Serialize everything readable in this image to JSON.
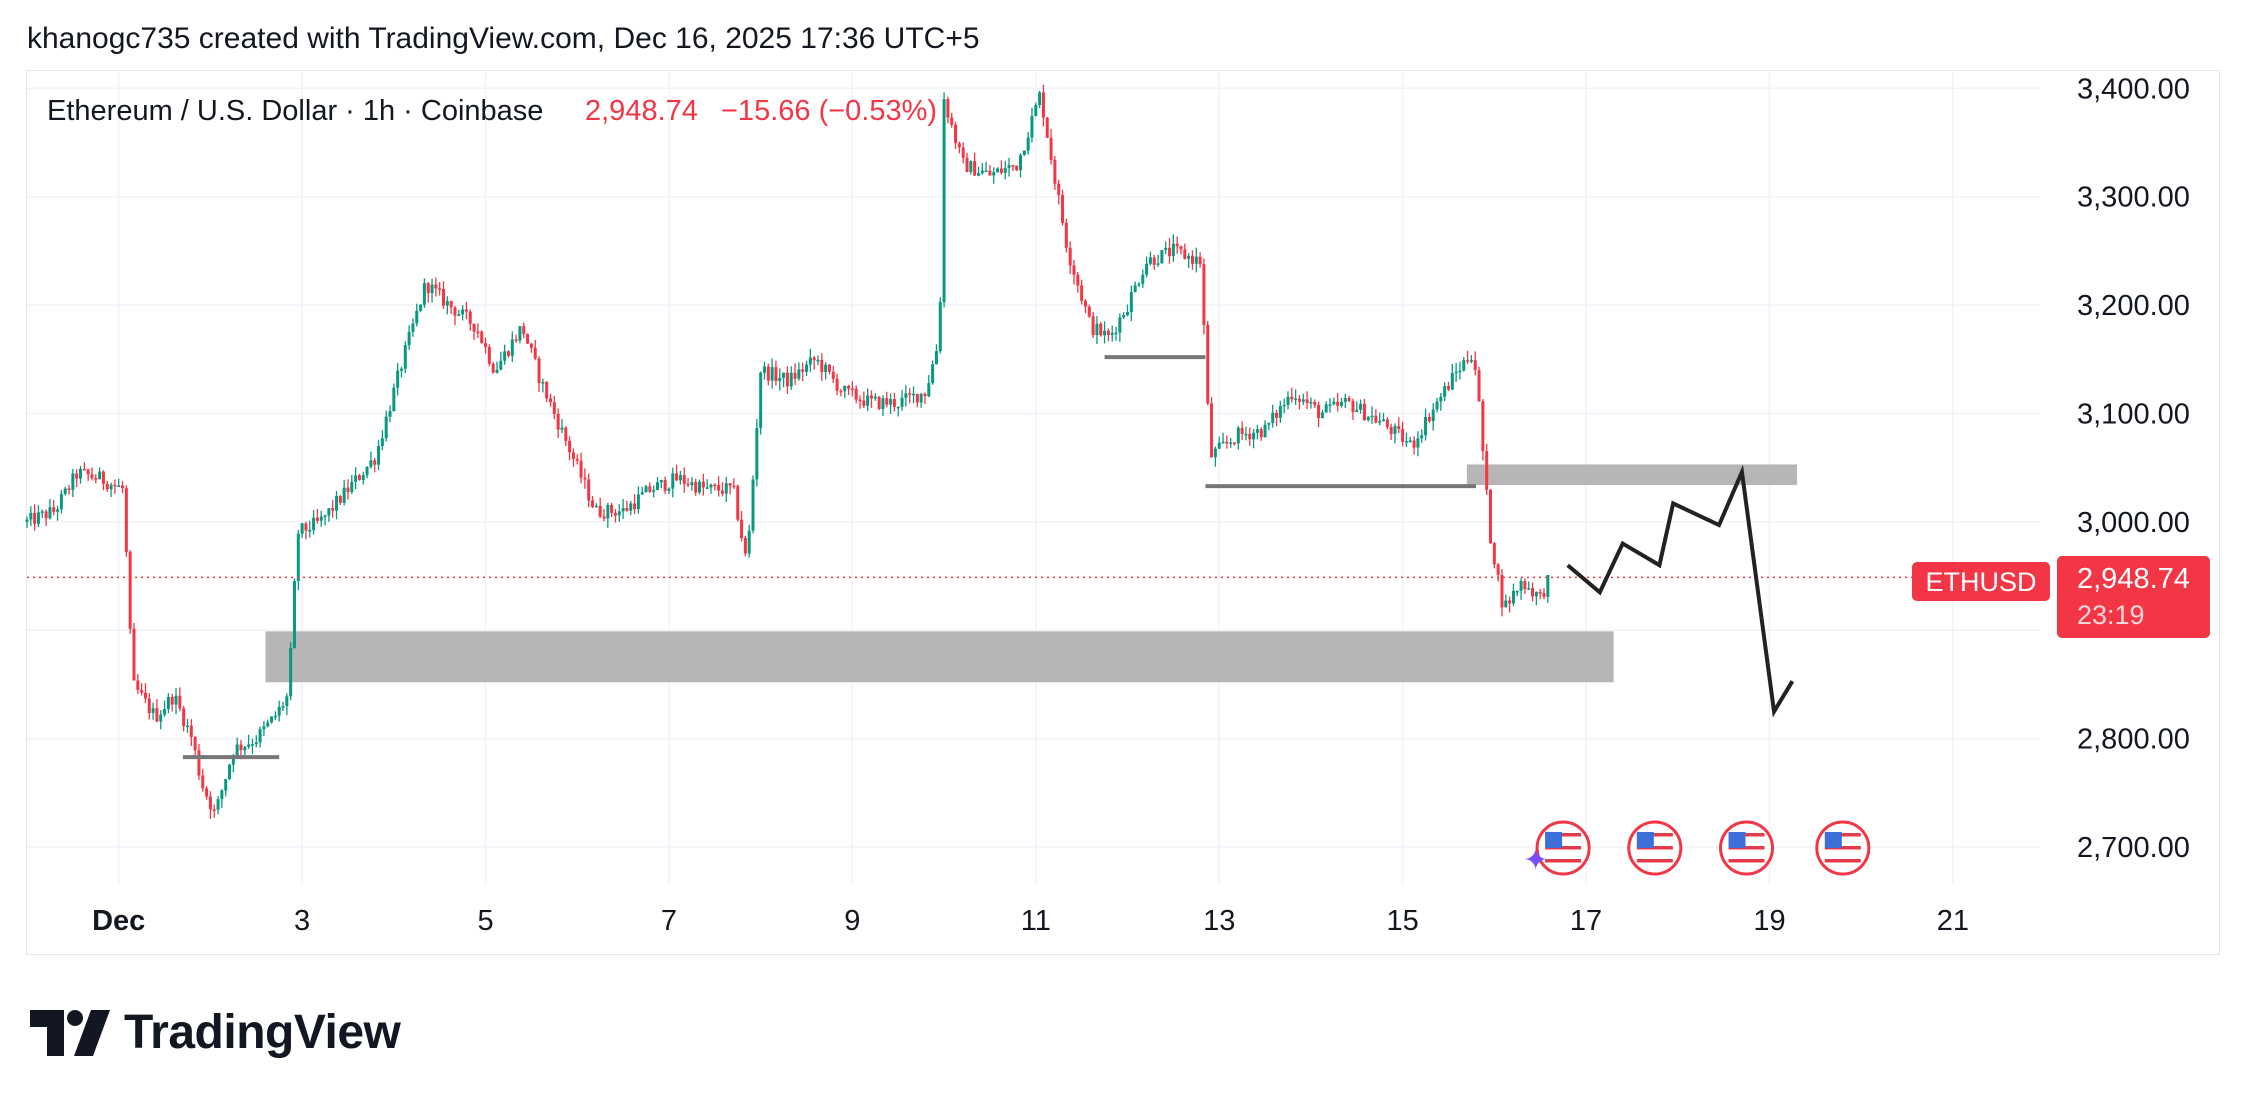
{
  "header": {
    "attribution": "khanogc735 created with TradingView.com, Dec 16, 2025 17:36 UTC+5"
  },
  "chart_data": {
    "type": "candlestick",
    "title": "Ethereum / U.S. Dollar · 1h · Coinbase",
    "last_price": "2,948.74",
    "change": "−15.66 (−0.53%)",
    "symbol_badge": "ETHUSD",
    "countdown": "23:19",
    "y_ticks": [
      "3,400.00",
      "3,300.00",
      "3,200.00",
      "3,100.00",
      "3,000.00",
      "2,800.00",
      "2,700.00"
    ],
    "y_tick_values": [
      3400,
      3300,
      3200,
      3100,
      3000,
      2800,
      2700
    ],
    "ylim": [
      2665,
      3415
    ],
    "x_ticks": [
      "Dec",
      "3",
      "5",
      "7",
      "9",
      "11",
      "13",
      "15",
      "17",
      "19",
      "21"
    ],
    "x_tick_days": [
      1,
      3,
      5,
      7,
      9,
      11,
      13,
      15,
      17,
      19,
      21
    ],
    "xlim_days": [
      0.0,
      21.95
    ],
    "price_path": [
      [
        0.0,
        3000
      ],
      [
        0.3,
        3010
      ],
      [
        0.55,
        3045
      ],
      [
        0.8,
        3040
      ],
      [
        1.05,
        3030
      ],
      [
        1.15,
        2850
      ],
      [
        1.4,
        2820
      ],
      [
        1.6,
        2840
      ],
      [
        1.8,
        2800
      ],
      [
        1.9,
        2760
      ],
      [
        2.05,
        2730
      ],
      [
        2.25,
        2790
      ],
      [
        2.5,
        2800
      ],
      [
        2.7,
        2820
      ],
      [
        2.85,
        2840
      ],
      [
        2.95,
        2990
      ],
      [
        3.2,
        3000
      ],
      [
        3.5,
        3030
      ],
      [
        3.8,
        3060
      ],
      [
        4.1,
        3150
      ],
      [
        4.35,
        3220
      ],
      [
        4.6,
        3200
      ],
      [
        4.9,
        3180
      ],
      [
        5.1,
        3140
      ],
      [
        5.4,
        3180
      ],
      [
        5.6,
        3130
      ],
      [
        5.9,
        3070
      ],
      [
        6.2,
        3010
      ],
      [
        6.5,
        3010
      ],
      [
        6.8,
        3030
      ],
      [
        7.1,
        3040
      ],
      [
        7.4,
        3030
      ],
      [
        7.7,
        3030
      ],
      [
        7.85,
        2960
      ],
      [
        8.0,
        3140
      ],
      [
        8.3,
        3130
      ],
      [
        8.6,
        3150
      ],
      [
        8.9,
        3120
      ],
      [
        9.2,
        3110
      ],
      [
        9.5,
        3110
      ],
      [
        9.8,
        3120
      ],
      [
        9.95,
        3170
      ],
      [
        10.0,
        3390
      ],
      [
        10.2,
        3330
      ],
      [
        10.5,
        3320
      ],
      [
        10.8,
        3330
      ],
      [
        11.05,
        3395
      ],
      [
        11.2,
        3320
      ],
      [
        11.35,
        3250
      ],
      [
        11.6,
        3180
      ],
      [
        11.8,
        3170
      ],
      [
        12.0,
        3200
      ],
      [
        12.2,
        3240
      ],
      [
        12.5,
        3250
      ],
      [
        12.8,
        3240
      ],
      [
        12.9,
        3060
      ],
      [
        13.2,
        3080
      ],
      [
        13.5,
        3085
      ],
      [
        13.8,
        3120
      ],
      [
        14.1,
        3100
      ],
      [
        14.4,
        3110
      ],
      [
        14.8,
        3090
      ],
      [
        15.1,
        3070
      ],
      [
        15.3,
        3100
      ],
      [
        15.6,
        3140
      ],
      [
        15.75,
        3155
      ],
      [
        15.8,
        3140
      ],
      [
        15.95,
        2990
      ],
      [
        16.1,
        2920
      ],
      [
        16.3,
        2945
      ],
      [
        16.5,
        2930
      ],
      [
        16.6,
        2948.74
      ]
    ],
    "current_price": 2948.74,
    "zones": [
      {
        "d0": 2.6,
        "d1": 17.3,
        "p_top": 2899,
        "p_bot": 2852
      },
      {
        "d0": 15.7,
        "d1": 19.3,
        "p_top": 3053,
        "p_bot": 3034
      }
    ],
    "level_lines": [
      {
        "d0": 1.7,
        "d1": 2.75,
        "p": 2783
      },
      {
        "d0": 11.75,
        "d1": 12.85,
        "p": 3152
      },
      {
        "d0": 12.85,
        "d1": 15.8,
        "p": 3033
      }
    ],
    "projection_path": [
      [
        16.8,
        2960
      ],
      [
        17.15,
        2935
      ],
      [
        17.4,
        2980
      ],
      [
        17.8,
        2960
      ],
      [
        17.95,
        3017
      ],
      [
        18.45,
        2997
      ],
      [
        18.7,
        3046
      ],
      [
        19.05,
        2825
      ],
      [
        19.25,
        2853
      ]
    ],
    "event_days": [
      16.75,
      17.75,
      18.75,
      19.8
    ],
    "colors": {
      "up": "#089981",
      "down": "#f23645",
      "zone": "#b2b2b2",
      "line": "#777777",
      "projection": "#222222",
      "badge": "#f23645",
      "grid": "#f0f3fa"
    }
  },
  "logo": {
    "text": "TradingView"
  }
}
